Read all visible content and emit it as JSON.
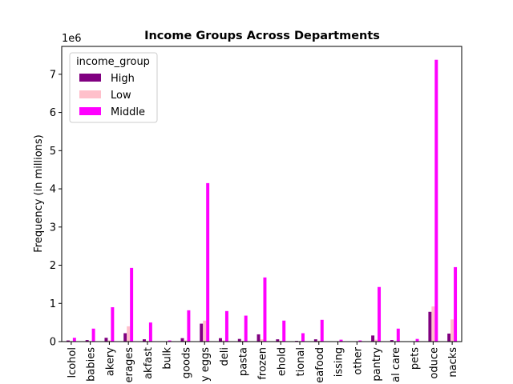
{
  "chart_data": {
    "type": "bar",
    "title": "Income Groups Across Departments",
    "y_label": "Frequency (in millions)",
    "offset_label": "1e6",
    "categories": [
      "lcohol",
      "babies",
      "akery",
      "erages",
      "akfast",
      "bulk",
      "goods",
      "y eggs",
      "deli",
      "pasta",
      "frozen",
      "ehold",
      "tional",
      "eafood",
      "issing",
      "other",
      "pantry",
      "al care",
      "pets",
      "oduce",
      "nacks"
    ],
    "legend_title": "income_group",
    "legend": "upper left",
    "series": [
      {
        "name": "High",
        "color": "#800080",
        "values": [
          30000,
          40000,
          100000,
          220000,
          60000,
          3000,
          90000,
          470000,
          90000,
          70000,
          190000,
          60000,
          20000,
          60000,
          6000,
          3000,
          160000,
          40000,
          7000,
          780000,
          210000
        ]
      },
      {
        "name": "Low",
        "color": "#ffc0cb",
        "values": [
          10000,
          10000,
          30000,
          400000,
          20000,
          1000,
          30000,
          550000,
          30000,
          20000,
          60000,
          20000,
          10000,
          20000,
          2000,
          1000,
          50000,
          10000,
          2000,
          920000,
          580000
        ]
      },
      {
        "name": "Middle",
        "color": "#ff00ff",
        "values": [
          100000,
          340000,
          900000,
          1930000,
          500000,
          30000,
          820000,
          4150000,
          800000,
          680000,
          1680000,
          550000,
          220000,
          570000,
          50000,
          30000,
          1430000,
          340000,
          70000,
          7380000,
          1950000
        ]
      }
    ],
    "ylim": [
      0,
      7730000
    ],
    "yticks": [
      {
        "value": 0,
        "label": "0"
      },
      {
        "value": 1000000,
        "label": "1"
      },
      {
        "value": 2000000,
        "label": "2"
      },
      {
        "value": 3000000,
        "label": "3"
      },
      {
        "value": 4000000,
        "label": "4"
      },
      {
        "value": 5000000,
        "label": "5"
      },
      {
        "value": 6000000,
        "label": "6"
      },
      {
        "value": 7000000,
        "label": "7"
      }
    ]
  }
}
